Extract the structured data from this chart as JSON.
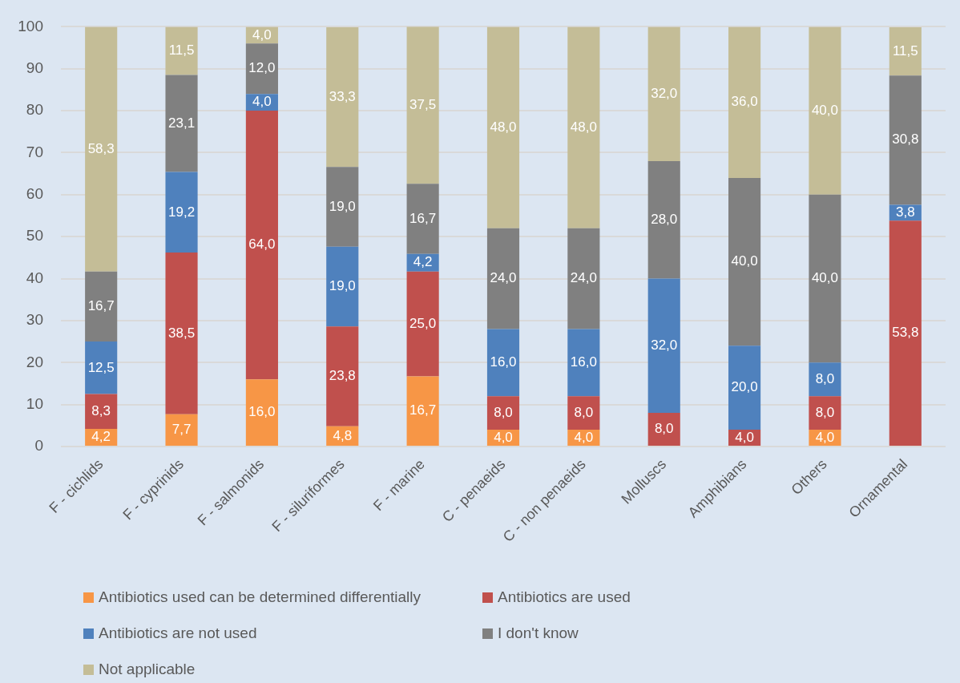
{
  "chart_data": {
    "type": "bar",
    "stacked": true,
    "categories": [
      "F - cichlids",
      "F - cyprinids",
      "F - salmonids",
      "F - siluriformes",
      "F - marine",
      "C - penaeids",
      "C - non penaeids",
      "Molluscs",
      "Amphibians",
      "Others",
      "Ornamental"
    ],
    "series": [
      {
        "name": "Antibiotics used can be determined differentially",
        "color": "#f79646",
        "values": [
          4.2,
          7.7,
          16.0,
          4.8,
          16.7,
          4.0,
          4.0,
          null,
          null,
          4.0,
          null
        ],
        "value_labels": [
          "4,2",
          "7,7",
          "16,0",
          "4,8",
          "16,7",
          "4,0",
          "4,0",
          null,
          null,
          "4,0",
          null
        ]
      },
      {
        "name": "Antibiotics are used",
        "color": "#c0504d",
        "values": [
          8.3,
          38.5,
          64.0,
          23.8,
          25.0,
          8.0,
          8.0,
          8.0,
          4.0,
          8.0,
          53.8
        ],
        "value_labels": [
          "8,3",
          "38,5",
          "64,0",
          "23,8",
          "25,0",
          "8,0",
          "8,0",
          "8,0",
          "4,0",
          "8,0",
          "53,8"
        ]
      },
      {
        "name": "Antibiotics are not used",
        "color": "#4f81bd",
        "values": [
          12.5,
          19.2,
          4.0,
          19.0,
          4.2,
          16.0,
          16.0,
          32.0,
          20.0,
          8.0,
          3.8
        ],
        "value_labels": [
          "12,5",
          "19,2",
          "4,0",
          "19,0",
          "4,2",
          "16,0",
          "16,0",
          "32,0",
          "20,0",
          "8,0",
          "3,8"
        ]
      },
      {
        "name": "I don't know",
        "color": "#808080",
        "values": [
          16.7,
          23.1,
          12.0,
          19.0,
          16.7,
          24.0,
          24.0,
          28.0,
          40.0,
          40.0,
          30.8
        ],
        "value_labels": [
          "16,7",
          "23,1",
          "12,0",
          "19,0",
          "16,7",
          "24,0",
          "24,0",
          "28,0",
          "40,0",
          "40,0",
          "30,8"
        ]
      },
      {
        "name": "Not applicable",
        "color": "#c4bd97",
        "values": [
          58.3,
          11.5,
          4.0,
          33.3,
          37.5,
          48.0,
          48.0,
          32.0,
          36.0,
          40.0,
          11.5
        ],
        "value_labels": [
          "58,3",
          "11,5",
          "4,0",
          "33,3",
          "37,5",
          "48,0",
          "48,0",
          "32,0",
          "36,0",
          "40,0",
          "11,5"
        ]
      }
    ],
    "ylim": [
      0,
      100
    ],
    "yticks": [
      0,
      10,
      20,
      30,
      40,
      50,
      60,
      70,
      80,
      90,
      100
    ],
    "grid": "y",
    "legend": "bottom"
  }
}
